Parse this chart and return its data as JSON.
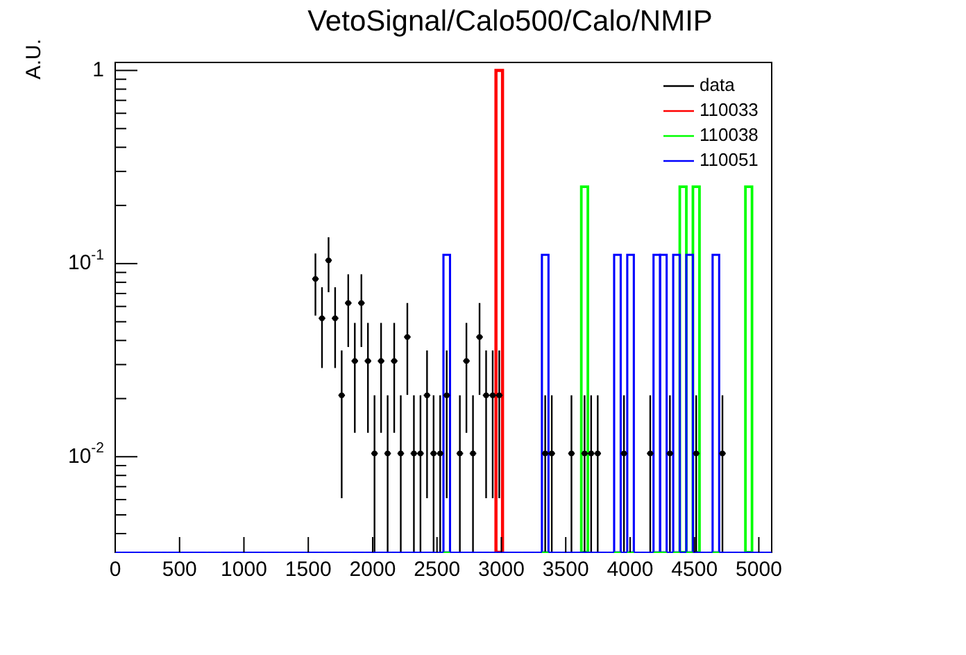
{
  "chart_data": {
    "type": "histogram",
    "title": "VetoSignal/Calo500/Calo/NMIP",
    "ylabel": "A.U.",
    "bins": [
      0,
      51,
      102,
      153,
      204,
      255,
      306,
      357,
      408,
      459,
      510,
      561,
      612,
      663,
      714,
      765,
      816,
      867,
      918,
      969,
      1020,
      1071,
      1122,
      1173,
      1224,
      1275,
      1326,
      1377,
      1428,
      1479,
      1530,
      1581,
      1632,
      1683,
      1734,
      1785,
      1836,
      1887,
      1938,
      1989,
      2040,
      2091,
      2142,
      2193,
      2244,
      2295,
      2346,
      2397,
      2448,
      2499,
      2550,
      2601,
      2652,
      2703,
      2754,
      2805,
      2856,
      2907,
      2958,
      3009,
      3060,
      3111,
      3162,
      3213,
      3264,
      3315,
      3366,
      3417,
      3468,
      3519,
      3570,
      3621,
      3672,
      3723,
      3774,
      3825,
      3876,
      3927,
      3978,
      4029,
      4080,
      4131,
      4182,
      4233,
      4284,
      4335,
      4386,
      4437,
      4488,
      4539,
      4590,
      4641,
      4692,
      4743,
      4794,
      4845,
      4896,
      4947,
      4998,
      5049,
      5100
    ],
    "series": [
      {
        "name": "data",
        "type": "scatter",
        "color": "#000000",
        "x": [
          1555.5,
          1606.5,
          1657.5,
          1708.5,
          1759.5,
          1810.5,
          1861.5,
          1912.5,
          1963.5,
          2014.5,
          2065.5,
          2116.5,
          2167.5,
          2218.5,
          2269.5,
          2320.5,
          2371.5,
          2422.5,
          2473.5,
          2524.5,
          2575.5,
          2677.5,
          2728.5,
          2779.5,
          2830.5,
          2881.5,
          2932.5,
          2983.5,
          3340.5,
          3391.5,
          3544.5,
          3646.5,
          3697.5,
          3748.5,
          3952.5,
          4156.5,
          4309.5,
          4513.5,
          4717.5
        ],
        "values": [
          0.0833,
          0.0521,
          0.104,
          0.0521,
          0.0208,
          0.0625,
          0.0313,
          0.0625,
          0.0313,
          0.0104,
          0.0313,
          0.0104,
          0.0313,
          0.0104,
          0.0417,
          0.0104,
          0.0104,
          0.0208,
          0.0104,
          0.0104,
          0.0208,
          0.0104,
          0.0313,
          0.0104,
          0.0417,
          0.0208,
          0.0208,
          0.0208,
          0.0104,
          0.0104,
          0.0104,
          0.0104,
          0.0104,
          0.0104,
          0.0104,
          0.0104,
          0.0104,
          0.0104,
          0.0104
        ],
        "errors": [
          0.0295,
          0.0233,
          0.0329,
          0.0233,
          0.0147,
          0.0255,
          0.018,
          0.0255,
          0.018,
          [
            0.0032,
            0.0208
          ],
          0.018,
          [
            0.0032,
            0.0208
          ],
          0.018,
          [
            0.0032,
            0.0208
          ],
          0.0208,
          [
            0.0032,
            0.0208
          ],
          [
            0.0032,
            0.0208
          ],
          0.0147,
          [
            0.0032,
            0.0208
          ],
          [
            0.0032,
            0.0208
          ],
          0.0147,
          [
            0.0032,
            0.0208
          ],
          0.018,
          [
            0.0032,
            0.0208
          ],
          0.0208,
          0.0147,
          0.0147,
          0.0147,
          [
            0.0032,
            0.0208
          ],
          [
            0.0032,
            0.0208
          ],
          [
            0.0032,
            0.0208
          ],
          [
            0.0032,
            0.0208
          ],
          [
            0.0032,
            0.0208
          ],
          [
            0.0032,
            0.0208
          ],
          [
            0.0032,
            0.0208
          ],
          [
            0.0032,
            0.0208
          ],
          [
            0.0032,
            0.0208
          ],
          [
            0.0032,
            0.0208
          ],
          [
            0.0032,
            0.0208
          ]
        ],
        "xerrors": [
          25.5,
          25.5,
          25.5,
          25.5,
          25.5,
          25.5,
          25.5,
          25.5,
          25.5,
          25.5,
          25.5,
          25.5,
          25.5,
          25.5,
          25.5,
          25.5,
          25.5,
          25.5,
          25.5,
          25.5,
          25.5,
          25.5,
          25.5,
          25.5,
          25.5,
          25.5,
          25.5,
          25.5,
          25.5,
          25.5,
          25.5,
          25.5,
          25.5,
          25.5,
          25.5,
          25.5,
          25.5,
          25.5,
          25.5
        ]
      },
      {
        "name": "110033",
        "color": "#ff0000",
        "values": [
          null,
          null,
          null,
          null,
          null,
          null,
          null,
          null,
          null,
          null,
          null,
          null,
          null,
          null,
          null,
          null,
          null,
          null,
          null,
          null,
          null,
          null,
          null,
          null,
          null,
          null,
          null,
          null,
          null,
          null,
          null,
          null,
          null,
          null,
          null,
          null,
          null,
          null,
          null,
          null,
          null,
          null,
          null,
          null,
          null,
          null,
          null,
          null,
          null,
          null,
          null,
          null,
          null,
          null,
          null,
          null,
          null,
          null,
          1,
          null,
          null,
          null,
          null,
          null,
          null,
          null,
          null,
          null,
          null,
          null,
          null,
          null,
          null,
          null,
          null,
          null,
          null,
          null,
          null,
          null,
          null,
          null,
          null,
          null,
          null,
          null,
          null,
          null,
          null,
          null,
          null,
          null,
          null,
          null,
          null,
          null,
          null,
          null,
          null,
          null
        ]
      },
      {
        "name": "110038",
        "color": "#00ff00",
        "values": [
          null,
          null,
          null,
          null,
          null,
          null,
          null,
          null,
          null,
          null,
          null,
          null,
          null,
          null,
          null,
          null,
          null,
          null,
          null,
          null,
          null,
          null,
          null,
          null,
          null,
          null,
          null,
          null,
          null,
          null,
          null,
          null,
          null,
          null,
          null,
          null,
          null,
          null,
          null,
          null,
          null,
          null,
          null,
          null,
          null,
          null,
          null,
          null,
          null,
          null,
          null,
          null,
          null,
          null,
          null,
          null,
          null,
          null,
          null,
          null,
          null,
          null,
          null,
          null,
          null,
          null,
          null,
          null,
          null,
          null,
          null,
          0.25,
          null,
          null,
          null,
          null,
          null,
          null,
          null,
          null,
          null,
          null,
          null,
          null,
          null,
          null,
          0.25,
          null,
          0.25,
          null,
          null,
          null,
          null,
          null,
          null,
          null,
          0.25,
          null,
          null,
          null
        ]
      },
      {
        "name": "110051",
        "color": "#0000ff",
        "values": [
          null,
          null,
          null,
          null,
          null,
          null,
          null,
          null,
          null,
          null,
          null,
          null,
          null,
          null,
          null,
          null,
          null,
          null,
          null,
          null,
          null,
          null,
          null,
          null,
          null,
          null,
          null,
          null,
          null,
          null,
          null,
          null,
          null,
          null,
          null,
          null,
          null,
          null,
          null,
          null,
          null,
          null,
          null,
          null,
          null,
          null,
          null,
          null,
          null,
          null,
          0.111,
          null,
          null,
          null,
          null,
          null,
          null,
          null,
          null,
          null,
          null,
          null,
          null,
          null,
          null,
          0.111,
          null,
          null,
          null,
          null,
          null,
          null,
          null,
          null,
          null,
          null,
          0.111,
          null,
          0.111,
          null,
          null,
          null,
          0.111,
          0.111,
          null,
          0.111,
          null,
          0.111,
          null,
          null,
          null,
          0.111,
          null,
          null,
          null,
          null,
          null,
          null,
          null,
          null
        ]
      }
    ],
    "xlim": [
      0,
      5100
    ],
    "xticks": [
      0,
      500,
      1000,
      1500,
      2000,
      2500,
      3000,
      3500,
      4000,
      4500,
      5000
    ],
    "ylim": [
      0.0032,
      1.1
    ],
    "yticks": [
      {
        "value": 0.004,
        "label": null
      },
      {
        "value": 0.005,
        "label": null
      },
      {
        "value": 0.006,
        "label": null
      },
      {
        "value": 0.007,
        "label": null
      },
      {
        "value": 0.008,
        "label": null
      },
      {
        "value": 0.009,
        "label": null
      },
      {
        "value": 0.01,
        "label": "10$^{-2}$"
      },
      {
        "value": 0.02,
        "label": null
      },
      {
        "value": 0.03,
        "label": null
      },
      {
        "value": 0.04,
        "label": null
      },
      {
        "value": 0.05,
        "label": null
      },
      {
        "value": 0.06,
        "label": null
      },
      {
        "value": 0.07,
        "label": null
      },
      {
        "value": 0.08,
        "label": null
      },
      {
        "value": 0.09,
        "label": null
      },
      {
        "value": 0.1,
        "label": "10$^{-1}$"
      },
      {
        "value": 0.2,
        "label": null
      },
      {
        "value": 0.3,
        "label": null
      },
      {
        "value": 0.4,
        "label": null
      },
      {
        "value": 0.5,
        "label": null
      },
      {
        "value": 0.6,
        "label": null
      },
      {
        "value": 0.7,
        "label": null
      },
      {
        "value": 0.8,
        "label": null
      },
      {
        "value": 0.9,
        "label": null
      },
      1
    ],
    "log": "y",
    "legend": "top right"
  }
}
